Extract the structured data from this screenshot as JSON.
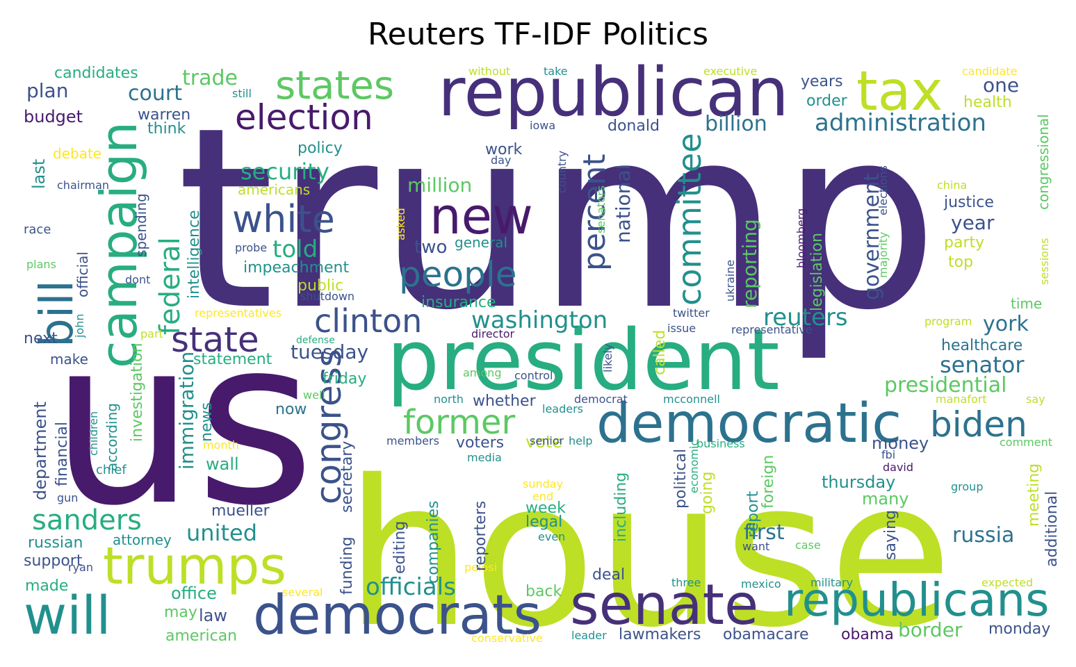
{
  "title": "Reuters TF-IDF Politics",
  "colors": {
    "background": "#ffffff",
    "palette": "viridis",
    "deep_purple": "#46307a",
    "dark_purple": "#481a6c",
    "indigo": "#3b528b",
    "blue": "#2c728e",
    "teal": "#21908d",
    "green": "#27ad81",
    "light_green": "#5cc863",
    "lime": "#a5db36",
    "yellow_green": "#bddf26",
    "yellow": "#fde725"
  },
  "words": [
    "trump",
    "us",
    "house",
    "president",
    "republican",
    "new",
    "tax",
    "campaign",
    "bill",
    "democratic",
    "senate",
    "democrats",
    "republicans",
    "trumps",
    "will",
    "states",
    "election",
    "white",
    "people",
    "clinton",
    "state",
    "congress",
    "former",
    "biden",
    "committee",
    "percent",
    "federal",
    "sanders",
    "officials",
    "washington",
    "reuters",
    "security",
    "administration",
    "billion",
    "government",
    "senator",
    "presidential",
    "york",
    "russia",
    "first",
    "united",
    "border",
    "trade",
    "court",
    "plan",
    "budget",
    "candidates",
    "warren",
    "think",
    "debate",
    "last",
    "chairman",
    "department",
    "financial",
    "official",
    "spending",
    "intelligence",
    "immigration",
    "investigation",
    "news",
    "make",
    "next",
    "according",
    "tuesday",
    "statement",
    "impeachment",
    "told",
    "million",
    "americans",
    "policy",
    "work",
    "day",
    "donald",
    "national",
    "reporting",
    "legislation",
    "justice",
    "year",
    "party",
    "top",
    "time",
    "healthcare",
    "congressional",
    "insurance",
    "public",
    "shutdown",
    "representatives",
    "twitter",
    "issue",
    "representative",
    "director",
    "called",
    "defense",
    "friday",
    "general",
    "two",
    "vote",
    "voters",
    "money",
    "thursday",
    "many",
    "saying",
    "additional",
    "meeting",
    "report",
    "foreign",
    "going",
    "political",
    "including",
    "economic",
    "business",
    "week",
    "legal",
    "even",
    "sunday",
    "end",
    "pelosi",
    "editing",
    "companies",
    "reporters",
    "funding",
    "secretary",
    "now",
    "wall",
    "mueller",
    "russian",
    "attorney",
    "support",
    "made",
    "ryan",
    "gun",
    "chief",
    "children",
    "month",
    "office",
    "may",
    "american",
    "law",
    "deal",
    "back",
    "several",
    "conservative",
    "leader",
    "lawmakers",
    "obamacare",
    "obama",
    "monday",
    "three",
    "mexico",
    "military",
    "expected",
    "case",
    "want",
    "david",
    "fbi",
    "group",
    "comment",
    "say",
    "manafort",
    "mcconnell",
    "democrat",
    "leaders",
    "north",
    "control",
    "among",
    "well",
    "members",
    "senior",
    "help",
    "media",
    "likely",
    "ukraine",
    "bloomberg",
    "majority",
    "elections",
    "senators",
    "country",
    "asked",
    "iowa",
    "china",
    "sessions",
    "program",
    "race",
    "plans",
    "dont",
    "john",
    "part",
    "probe",
    "without",
    "take",
    "still",
    "executive",
    "candidate",
    "health",
    "order",
    "years",
    "one",
    "whether"
  ]
}
